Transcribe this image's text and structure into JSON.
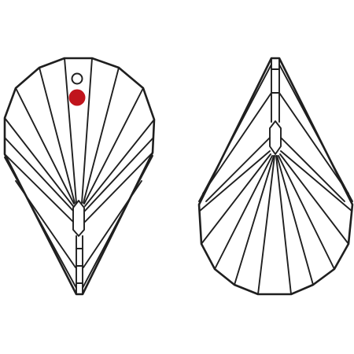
{
  "diagram": {
    "colors": {
      "line": "#1f1f1f",
      "background": "#ffffff",
      "hole_marker": "#c0141c",
      "hole_ring": "#1f1f1f"
    },
    "views": [
      {
        "name": "front-view",
        "icon": "crystal-pendant-front-icon"
      },
      {
        "name": "side-view",
        "icon": "crystal-pendant-side-icon"
      }
    ],
    "features": {
      "drill_hole": "open-ring",
      "marker": "red-dot"
    }
  }
}
